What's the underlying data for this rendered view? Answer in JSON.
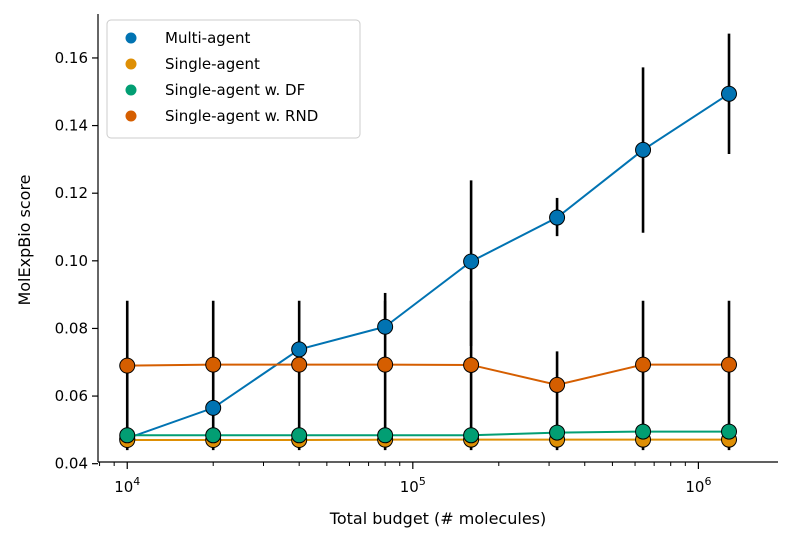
{
  "chart_data": {
    "type": "line",
    "xscale": "log",
    "xlabel": "Total budget (# molecules)",
    "ylabel": "MolExpBio score",
    "xlim": [
      7900,
      1900000
    ],
    "ylim": [
      0.0405,
      0.173
    ],
    "xticks": [
      {
        "value": 10000,
        "base": "10",
        "exp": "4"
      },
      {
        "value": 100000,
        "base": "10",
        "exp": "5"
      },
      {
        "value": 1000000,
        "base": "10",
        "exp": "6"
      }
    ],
    "yticks": [
      {
        "value": 0.04,
        "label": "0.04"
      },
      {
        "value": 0.06,
        "label": "0.06"
      },
      {
        "value": 0.08,
        "label": "0.08"
      },
      {
        "value": 0.1,
        "label": "0.10"
      },
      {
        "value": 0.12,
        "label": "0.12"
      },
      {
        "value": 0.14,
        "label": "0.14"
      },
      {
        "value": 0.16,
        "label": "0.16"
      }
    ],
    "x": [
      10000,
      20000,
      40000,
      80000,
      160000,
      320000,
      640000,
      1280000
    ],
    "series": [
      {
        "name": "Multi-agent",
        "color": "#0173b2",
        "values": [
          0.0475,
          0.0565,
          0.0738,
          0.0805,
          0.0998,
          0.1128,
          0.1328,
          0.1494
        ],
        "err_low": [
          0.0475,
          0.0565,
          0.0738,
          0.0805,
          0.0748,
          0.1073,
          0.1083,
          0.1316
        ],
        "err_high": [
          0.0475,
          0.0565,
          0.0738,
          0.0905,
          0.1238,
          0.1186,
          0.1572,
          0.1672
        ]
      },
      {
        "name": "Single-agent",
        "color": "#de8f05",
        "values": [
          0.047,
          0.047,
          0.047,
          0.0471,
          0.0471,
          0.0471,
          0.0471,
          0.0471
        ],
        "err_low": [
          0.047,
          0.047,
          0.047,
          0.0471,
          0.0471,
          0.0471,
          0.0471,
          0.0471
        ],
        "err_high": [
          0.047,
          0.047,
          0.047,
          0.0471,
          0.0471,
          0.0471,
          0.0471,
          0.0471
        ]
      },
      {
        "name": "Single-agent w. DF",
        "color": "#029e73",
        "values": [
          0.0484,
          0.0484,
          0.0484,
          0.0484,
          0.0484,
          0.0492,
          0.0495,
          0.0495
        ],
        "err_low": [
          0.0484,
          0.0484,
          0.0484,
          0.0484,
          0.0484,
          0.0492,
          0.0495,
          0.0495
        ],
        "err_high": [
          0.0484,
          0.0484,
          0.0484,
          0.0484,
          0.0484,
          0.0492,
          0.0495,
          0.0495
        ]
      },
      {
        "name": "Single-agent w. RND",
        "color": "#d55e00",
        "values": [
          0.069,
          0.0693,
          0.0693,
          0.0693,
          0.0692,
          0.0633,
          0.0693,
          0.0693
        ],
        "err_low": [
          0.044,
          0.044,
          0.044,
          0.044,
          0.044,
          0.044,
          0.044,
          0.044
        ],
        "err_high": [
          0.0882,
          0.0882,
          0.0882,
          0.0882,
          0.0882,
          0.0732,
          0.0882,
          0.0882
        ]
      }
    ],
    "legend_position": "top-left"
  }
}
